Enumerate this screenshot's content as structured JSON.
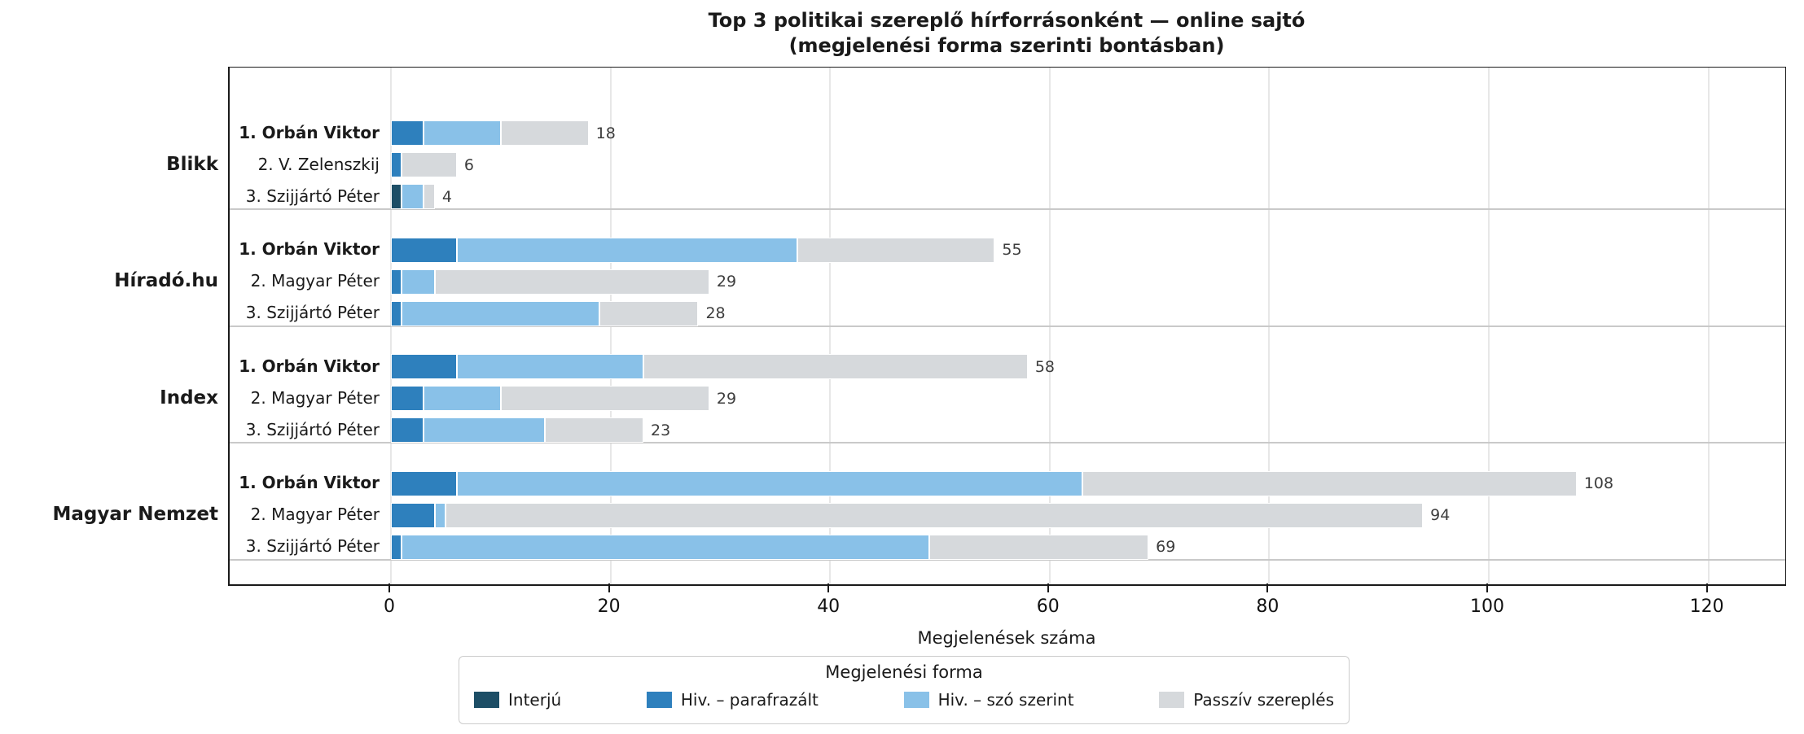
{
  "title": {
    "line1": "Top 3 politikai szereplő hírforrásonként — online sajtó",
    "line2": "(megjelenési forma szerinti bontásban)"
  },
  "xlabel": "Megjelenések száma",
  "legend": {
    "title": "Megjelenési forma"
  },
  "chart_data": {
    "type": "bar",
    "orientation": "horizontal",
    "stacked": true,
    "title": "Top 3 politikai szereplő hírforrásonként — online sajtó (megjelenési forma szerinti bontásban)",
    "xlabel": "Megjelenések száma",
    "ylabel": "",
    "xlim": [
      0,
      127
    ],
    "xticks": [
      0,
      20,
      40,
      60,
      80,
      100,
      120
    ],
    "grid": true,
    "legend_position": "bottom",
    "series_names": [
      "Interjú",
      "Hiv. – parafrazált",
      "Hiv. – szó szerint",
      "Passzív szereplés"
    ],
    "series_colors": [
      "#1d4e66",
      "#2e80bd",
      "#89c1e8",
      "#d6d9dc"
    ],
    "groups": [
      {
        "source": "Blikk",
        "bars": [
          {
            "label": "1. Orbán Viktor",
            "bold": true,
            "total": 18,
            "values": [
              0,
              3,
              7,
              8
            ]
          },
          {
            "label": "2. V. Zelenszkij",
            "bold": false,
            "total": 6,
            "values": [
              0,
              1,
              0,
              5
            ]
          },
          {
            "label": "3. Szijjártó Péter",
            "bold": false,
            "total": 4,
            "values": [
              1,
              0,
              2,
              1
            ]
          }
        ]
      },
      {
        "source": "Híradó.hu",
        "bars": [
          {
            "label": "1. Orbán Viktor",
            "bold": true,
            "total": 55,
            "values": [
              0,
              6,
              31,
              18
            ]
          },
          {
            "label": "2. Magyar Péter",
            "bold": false,
            "total": 29,
            "values": [
              0,
              1,
              3,
              25
            ]
          },
          {
            "label": "3. Szijjártó Péter",
            "bold": false,
            "total": 28,
            "values": [
              0,
              1,
              18,
              9
            ]
          }
        ]
      },
      {
        "source": "Index",
        "bars": [
          {
            "label": "1. Orbán Viktor",
            "bold": true,
            "total": 58,
            "values": [
              0,
              6,
              17,
              35
            ]
          },
          {
            "label": "2. Magyar Péter",
            "bold": false,
            "total": 29,
            "values": [
              0,
              3,
              7,
              19
            ]
          },
          {
            "label": "3. Szijjártó Péter",
            "bold": false,
            "total": 23,
            "values": [
              0,
              3,
              11,
              9
            ]
          }
        ]
      },
      {
        "source": "Magyar Nemzet",
        "bars": [
          {
            "label": "1. Orbán Viktor",
            "bold": true,
            "total": 108,
            "values": [
              0,
              6,
              57,
              45
            ]
          },
          {
            "label": "2. Magyar Péter",
            "bold": false,
            "total": 94,
            "values": [
              0,
              4,
              1,
              89
            ]
          },
          {
            "label": "3. Szijjártó Péter",
            "bold": false,
            "total": 69,
            "values": [
              0,
              1,
              48,
              20
            ]
          }
        ]
      }
    ]
  }
}
